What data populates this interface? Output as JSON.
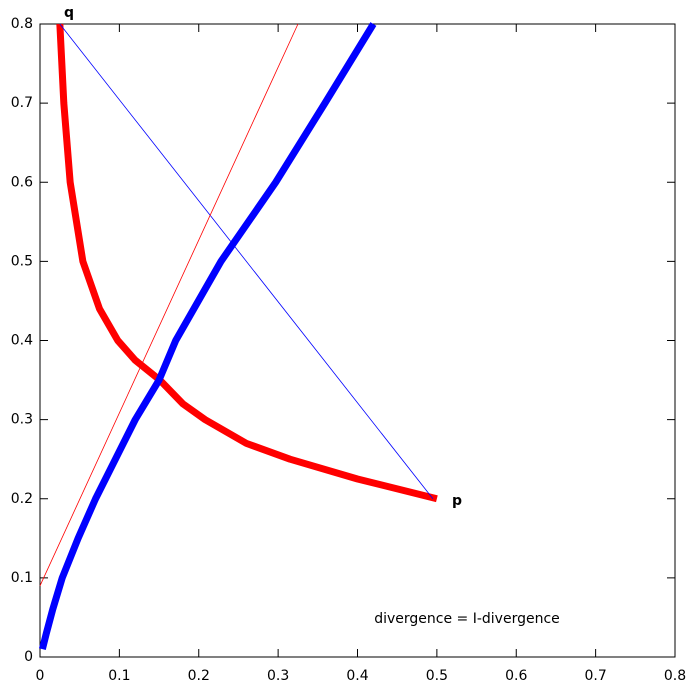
{
  "chart_data": {
    "type": "line",
    "annotations": [
      "q",
      "p",
      "divergence = I-divergence"
    ],
    "series": [
      {
        "color": "#ff0000",
        "line_width": 7,
        "x": [
          0.025,
          0.03,
          0.038,
          0.054,
          0.075,
          0.098,
          0.12,
          0.151,
          0.18,
          0.208,
          0.26,
          0.315,
          0.4,
          0.5
        ],
        "values": [
          0.8,
          0.7,
          0.6,
          0.5,
          0.44,
          0.4,
          0.375,
          0.35,
          0.32,
          0.3,
          0.27,
          0.25,
          0.225,
          0.2
        ]
      },
      {
        "color": "#0000ff",
        "line_width": 7,
        "x": [
          0.003,
          0.008,
          0.016,
          0.028,
          0.048,
          0.07,
          0.095,
          0.12,
          0.15,
          0.171,
          0.228,
          0.297,
          0.359,
          0.42
        ],
        "values": [
          0.01,
          0.03,
          0.06,
          0.1,
          0.15,
          0.2,
          0.25,
          0.3,
          0.35,
          0.4,
          0.5,
          0.6,
          0.7,
          0.8
        ]
      },
      {
        "color": "#0000ff",
        "line_width": 0.8,
        "x": [
          0.025,
          0.495
        ],
        "values": [
          0.8,
          0.2
        ]
      },
      {
        "color": "#ff0000",
        "line_width": 0.8,
        "x": [
          0,
          0.325
        ],
        "values": [
          0.09,
          0.8
        ]
      }
    ],
    "xlim": [
      0,
      0.8
    ],
    "ylim": [
      0,
      0.8
    ],
    "xticks": [
      0,
      0.1,
      0.2,
      0.3,
      0.4,
      0.5,
      0.6,
      0.7,
      0.8
    ],
    "yticks": [
      0,
      0.1,
      0.2,
      0.3,
      0.4,
      0.5,
      0.6,
      0.7,
      0.8
    ],
    "grid": false
  }
}
